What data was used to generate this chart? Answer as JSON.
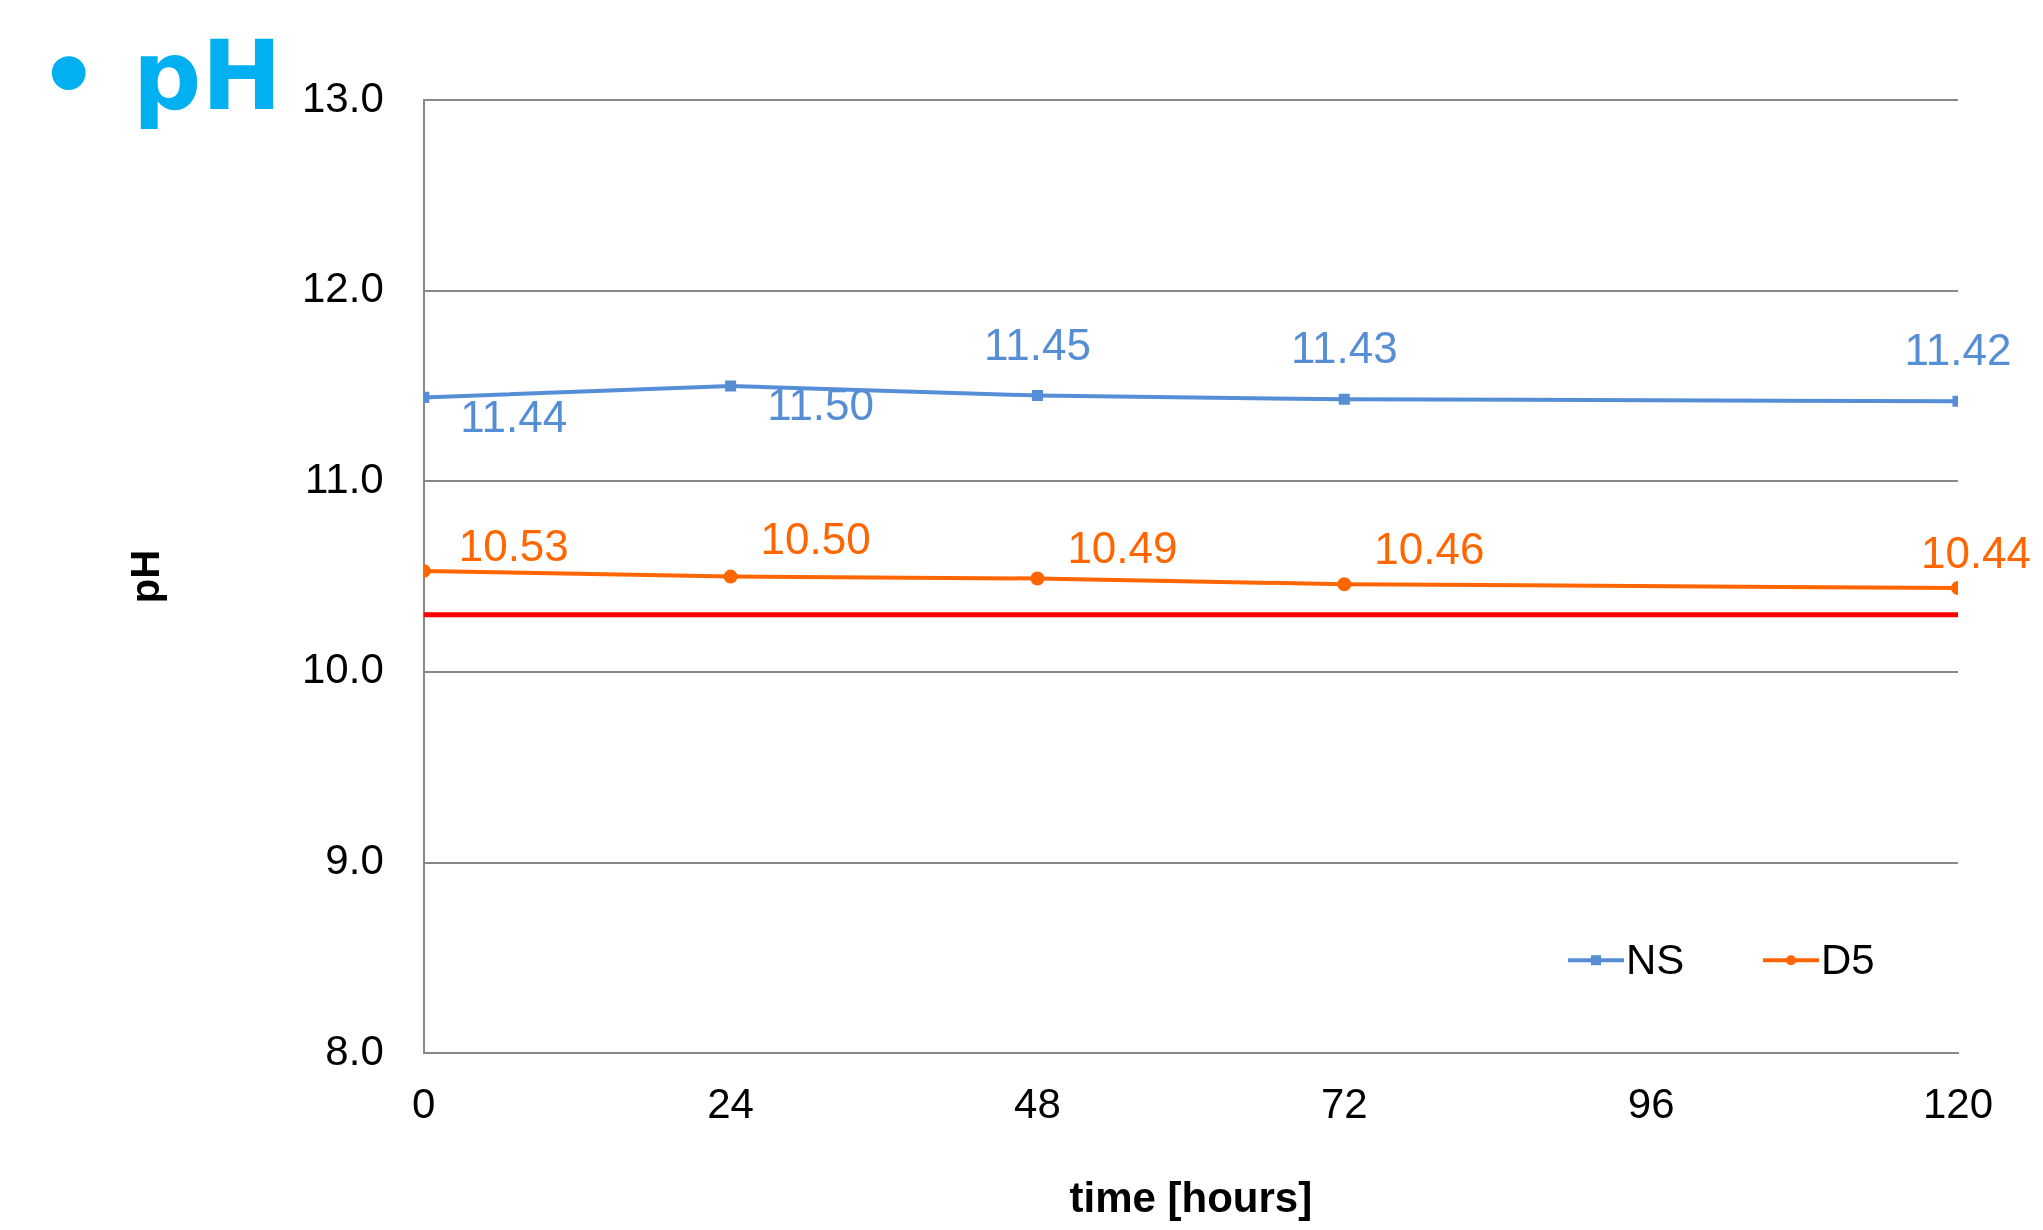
{
  "chart_data": {
    "type": "line",
    "title": "• pH",
    "xlabel": "time [hours]",
    "ylabel": "pH",
    "x": [
      0,
      24,
      48,
      72,
      120
    ],
    "series": [
      {
        "name": "NS",
        "color": "#558ed5",
        "values": [
          11.44,
          11.5,
          11.45,
          11.43,
          11.42
        ],
        "value_labels": [
          "11.44",
          "11.50",
          "11.45",
          "11.43",
          "11.42"
        ],
        "marker": "square"
      },
      {
        "name": "D5",
        "color": "#ff6600",
        "values": [
          10.53,
          10.5,
          10.49,
          10.46,
          10.44
        ],
        "value_labels": [
          "10.53",
          "10.50",
          "10.49",
          "10.46",
          "10.44"
        ],
        "marker": "circle"
      }
    ],
    "xlim": [
      0,
      120
    ],
    "xticks": [
      0,
      24,
      48,
      72,
      96,
      120
    ],
    "ylim": [
      8,
      13
    ],
    "yticks": [
      {
        "value": 8,
        "label": "8.0"
      },
      {
        "value": 9,
        "label": "9.0"
      },
      {
        "value": 10,
        "label": "10.0"
      },
      {
        "value": 11,
        "label": "11.0"
      },
      {
        "value": 12,
        "label": "12.0"
      },
      {
        "value": 13,
        "label": "13.0"
      }
    ],
    "ref_lines": [
      {
        "axis": "y",
        "value": 10.3,
        "color": "#ff0000"
      }
    ],
    "grid": "y",
    "legend": "bottom right",
    "line_style": "solid"
  }
}
